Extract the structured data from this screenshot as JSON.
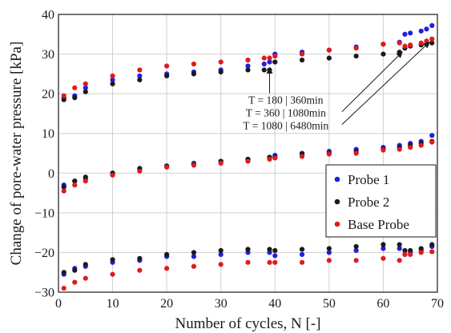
{
  "chart_data": {
    "type": "scatter",
    "xlabel": "Number of cycles, N [-]",
    "ylabel": "Change of pore-water pressure [kPa]",
    "xlim": [
      0,
      70
    ],
    "ylim": [
      -30,
      40
    ],
    "xticks": [
      0,
      10,
      20,
      30,
      40,
      50,
      60,
      70
    ],
    "yticks": [
      -30,
      -20,
      -10,
      0,
      10,
      20,
      30,
      40
    ],
    "grid": true,
    "legend_position": "lower-right",
    "series": [
      {
        "name": "Probe 1",
        "color": "#1f1fe0",
        "groups": [
          {
            "x": [
              1,
              3,
              5,
              10,
              15,
              20,
              25,
              30,
              35,
              38,
              39,
              40,
              45,
              50,
              55,
              60,
              63,
              64,
              65,
              67,
              68,
              69
            ],
            "y": [
              19.0,
              19.5,
              21.5,
              23.5,
              24.5,
              25.0,
              25.5,
              26.0,
              27.0,
              27.5,
              28.0,
              30.0,
              30.5,
              31.0,
              31.8,
              32.5,
              33.0,
              35.0,
              35.3,
              35.8,
              36.3,
              37.2
            ]
          },
          {
            "x": [
              1,
              3,
              5,
              10,
              15,
              20,
              25,
              30,
              35,
              39,
              40,
              45,
              50,
              55,
              60,
              63,
              65,
              67,
              69
            ],
            "y": [
              -3.0,
              -2.0,
              -1.5,
              0.0,
              1.0,
              1.8,
              2.5,
              3.0,
              3.5,
              4.0,
              4.5,
              5.0,
              5.5,
              6.0,
              6.5,
              7.0,
              7.5,
              8.0,
              9.5
            ]
          },
          {
            "x": [
              1,
              3,
              5,
              10,
              15,
              20,
              25,
              30,
              35,
              39,
              40,
              45,
              50,
              55,
              60,
              63,
              64,
              65,
              67,
              69
            ],
            "y": [
              -25.5,
              -24.0,
              -23.5,
              -22.5,
              -22.0,
              -21.0,
              -21.0,
              -20.5,
              -20.0,
              -20.0,
              -20.8,
              -20.5,
              -20.0,
              -19.5,
              -19.0,
              -19.0,
              -20.5,
              -20.0,
              -19.5,
              -18.5
            ]
          }
        ]
      },
      {
        "name": "Probe 2",
        "color": "#1a1a1a",
        "groups": [
          {
            "x": [
              1,
              3,
              5,
              10,
              15,
              20,
              25,
              30,
              35,
              38,
              39,
              40,
              45,
              50,
              55,
              60,
              63,
              64,
              65,
              67,
              68,
              69
            ],
            "y": [
              18.5,
              19.0,
              20.5,
              22.5,
              23.5,
              24.5,
              25.0,
              25.5,
              26.0,
              26.0,
              26.0,
              28.0,
              28.5,
              29.0,
              29.5,
              30.0,
              30.5,
              31.5,
              32.0,
              32.3,
              32.5,
              32.8
            ]
          },
          {
            "x": [
              1,
              3,
              5,
              10,
              15,
              20,
              25,
              30,
              35,
              39,
              40,
              45,
              50,
              55,
              60,
              63,
              65,
              67,
              69
            ],
            "y": [
              -3.5,
              -2.0,
              -1.0,
              0.0,
              1.2,
              1.8,
              2.2,
              3.0,
              3.5,
              4.0,
              4.0,
              4.8,
              5.0,
              5.5,
              6.0,
              6.5,
              7.0,
              7.5,
              8.0
            ]
          },
          {
            "x": [
              1,
              3,
              5,
              10,
              15,
              20,
              25,
              30,
              35,
              39,
              40,
              45,
              50,
              55,
              60,
              63,
              64,
              65,
              67,
              69
            ],
            "y": [
              -25.0,
              -24.5,
              -23.0,
              -21.8,
              -21.5,
              -20.5,
              -20.0,
              -19.5,
              -19.2,
              -19.2,
              -19.5,
              -19.2,
              -19.0,
              -18.5,
              -18.0,
              -18.0,
              -19.5,
              -19.5,
              -19.0,
              -18.0
            ]
          }
        ]
      },
      {
        "name": "Base Probe",
        "color": "#e01b1b",
        "groups": [
          {
            "x": [
              1,
              3,
              5,
              10,
              15,
              20,
              25,
              30,
              35,
              38,
              39,
              40,
              45,
              50,
              55,
              60,
              63,
              64,
              65,
              67,
              68,
              69
            ],
            "y": [
              19.5,
              21.5,
              22.5,
              24.5,
              26.0,
              27.0,
              27.5,
              28.0,
              28.5,
              29.0,
              29.0,
              29.5,
              30.0,
              31.0,
              31.5,
              32.5,
              32.8,
              32.0,
              32.3,
              32.8,
              33.3,
              33.8
            ]
          },
          {
            "x": [
              1,
              3,
              5,
              10,
              15,
              20,
              25,
              30,
              35,
              39,
              40,
              45,
              50,
              55,
              60,
              63,
              65,
              67,
              69
            ],
            "y": [
              -4.5,
              -3.0,
              -2.0,
              -0.5,
              0.5,
              1.5,
              2.0,
              2.5,
              3.0,
              3.5,
              3.8,
              4.2,
              4.8,
              5.0,
              5.8,
              6.0,
              6.5,
              7.0,
              7.8
            ]
          },
          {
            "x": [
              1,
              3,
              5,
              10,
              15,
              20,
              25,
              30,
              35,
              39,
              40,
              45,
              50,
              55,
              60,
              63,
              64,
              65,
              67,
              69
            ],
            "y": [
              -29.0,
              -27.5,
              -26.5,
              -25.5,
              -24.5,
              -24.0,
              -23.5,
              -23.0,
              -22.5,
              -22.5,
              -22.5,
              -22.5,
              -22.0,
              -22.0,
              -21.5,
              -22.0,
              -20.5,
              -20.5,
              -20.0,
              -19.8
            ]
          }
        ]
      }
    ],
    "annotations": [
      {
        "text": "T = 180 | 360min",
        "arrow_to": [
          39,
          26.5
        ]
      },
      {
        "text": "T = 360 | 1080min",
        "arrow_to": [
          63.5,
          30.5
        ]
      },
      {
        "text": "T = 1080 | 6480min",
        "arrow_to": [
          68.5,
          33.0
        ]
      }
    ]
  }
}
